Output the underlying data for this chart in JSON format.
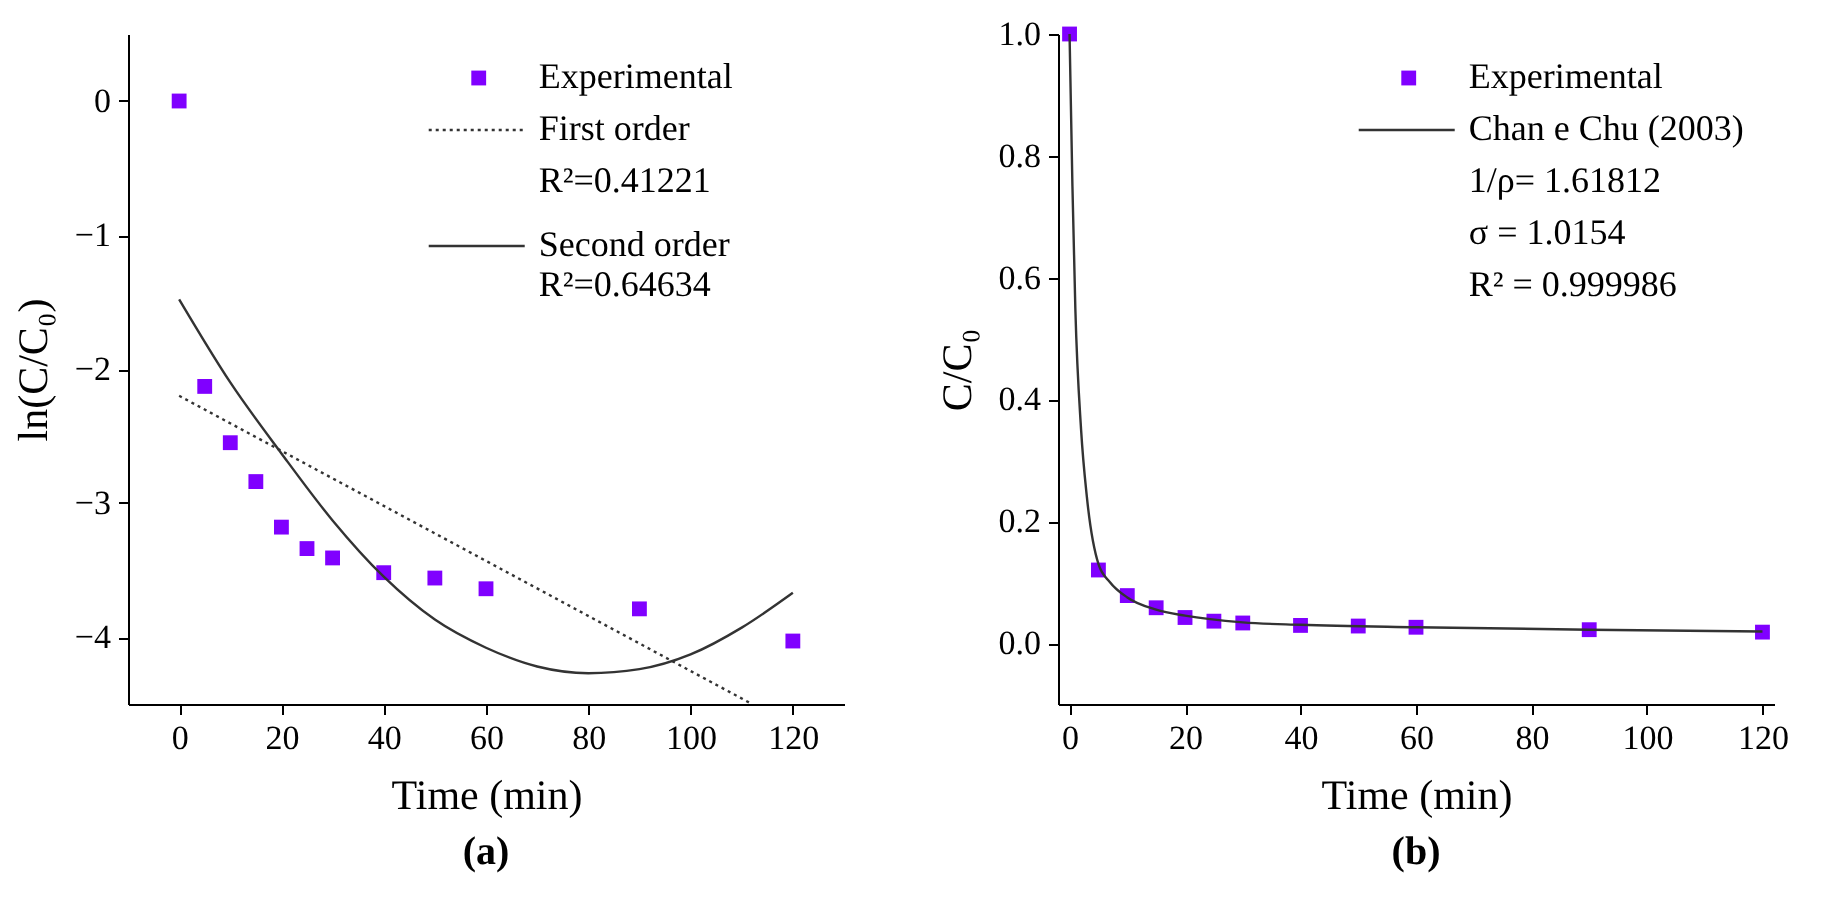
{
  "chart_data": [
    {
      "type": "scatter",
      "title": "(a)",
      "xlabel": "Time (min)",
      "ylabel": "ln(C/C₀)",
      "xlim": [
        -10,
        130
      ],
      "ylim": [
        -4.5,
        0.5
      ],
      "xticks": [
        0,
        20,
        40,
        60,
        80,
        100,
        120
      ],
      "yticks": [
        -4,
        -3,
        -2,
        -1,
        0
      ],
      "legend": "top right",
      "annotations": [
        "R²=0.41221",
        "R²=0.64634"
      ],
      "series": [
        {
          "name": "Experimental",
          "marker": "square",
          "color": "#8000ff",
          "x": [
            0,
            5,
            10,
            15,
            20,
            25,
            30,
            40,
            50,
            60,
            90,
            120
          ],
          "values": [
            0,
            -2.13,
            -2.55,
            -2.84,
            -3.18,
            -3.34,
            -3.41,
            -3.52,
            -3.56,
            -3.64,
            -3.79,
            -4.03
          ]
        },
        {
          "name": "First order",
          "type": "line",
          "marker": "none",
          "line_style": "dotted",
          "color": "#333333",
          "x": [
            0,
            112
          ],
          "values": [
            -2.2,
            -4.5
          ]
        },
        {
          "name": "Second order",
          "type": "line",
          "marker": "none",
          "line_style": "solid",
          "color": "#333333",
          "x": [
            0,
            10,
            20,
            30,
            40,
            50,
            60,
            70,
            80,
            90,
            100,
            110,
            120
          ],
          "values": [
            -1.48,
            -2.1,
            -2.63,
            -3.13,
            -3.55,
            -3.87,
            -4.08,
            -4.22,
            -4.27,
            -4.24,
            -4.13,
            -3.93,
            -3.67
          ]
        }
      ]
    },
    {
      "type": "scatter",
      "title": "(b)",
      "xlabel": "Time (min)",
      "ylabel": "C/C₀",
      "xlim": [
        -2,
        122
      ],
      "ylim": [
        -0.1,
        1.0
      ],
      "xticks": [
        0,
        20,
        40,
        60,
        80,
        100,
        120
      ],
      "yticks": [
        {
          "value": 0,
          "label": "0.0"
        },
        0.2,
        0.4,
        0.6,
        0.8,
        {
          "value": 1,
          "label": "1.0"
        }
      ],
      "legend": "top right",
      "annotations": [
        "1/ρ= 1.61812",
        "σ = 1.0154",
        "R² = 0.999986"
      ],
      "series": [
        {
          "name": "Experimental",
          "marker": "square",
          "color": "#8000ff",
          "x": [
            0,
            5,
            10,
            15,
            20,
            25,
            30,
            40,
            50,
            60,
            90,
            120
          ],
          "values": [
            1.0,
            0.12,
            0.078,
            0.058,
            0.042,
            0.036,
            0.033,
            0.029,
            0.028,
            0.026,
            0.022,
            0.018
          ]
        },
        {
          "name": "Chan e Chu (2003)",
          "type": "line",
          "marker": "none",
          "line_style": "solid",
          "color": "#333333",
          "x": [
            0,
            0.5,
            1,
            2,
            3,
            5,
            7,
            10,
            15,
            20,
            30,
            40,
            60,
            90,
            120
          ],
          "values": [
            1.0,
            0.75,
            0.55,
            0.35,
            0.24,
            0.13,
            0.1,
            0.075,
            0.055,
            0.045,
            0.034,
            0.03,
            0.026,
            0.022,
            0.019
          ]
        }
      ]
    }
  ]
}
